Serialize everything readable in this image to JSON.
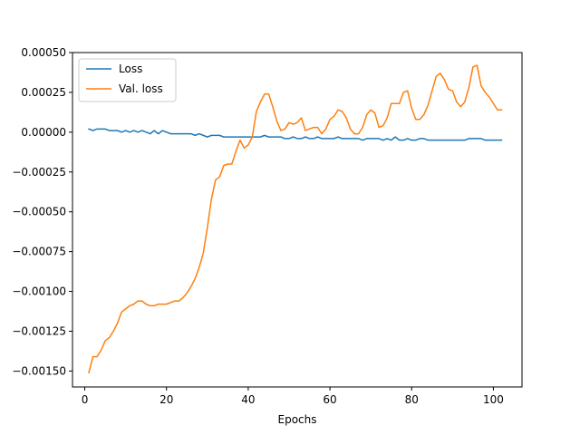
{
  "chart_data": {
    "type": "line",
    "title": "",
    "xlabel": "Epochs",
    "ylabel": "",
    "xlim": [
      -3,
      107
    ],
    "ylim": [
      -0.0016,
      0.0005
    ],
    "xticks": [
      0,
      20,
      40,
      60,
      80,
      100
    ],
    "yticks": [
      0.0005,
      0.00025,
      0.0,
      -0.00025,
      -0.0005,
      -0.00075,
      -0.001,
      -0.00125,
      -0.0015
    ],
    "ytick_labels": [
      "0.00050",
      "0.00025",
      "0.00000",
      "−0.00025",
      "−0.00050",
      "−0.00075",
      "−0.00100",
      "−0.00125",
      "−0.00150"
    ],
    "grid": false,
    "legend_position": "top-left",
    "x": [
      1,
      2,
      3,
      4,
      5,
      6,
      7,
      8,
      9,
      10,
      11,
      12,
      13,
      14,
      15,
      16,
      17,
      18,
      19,
      20,
      21,
      22,
      23,
      24,
      25,
      26,
      27,
      28,
      29,
      30,
      31,
      32,
      33,
      34,
      35,
      36,
      37,
      38,
      39,
      40,
      41,
      42,
      43,
      44,
      45,
      46,
      47,
      48,
      49,
      50,
      51,
      52,
      53,
      54,
      55,
      56,
      57,
      58,
      59,
      60,
      61,
      62,
      63,
      64,
      65,
      66,
      67,
      68,
      69,
      70,
      71,
      72,
      73,
      74,
      75,
      76,
      77,
      78,
      79,
      80,
      81,
      82,
      83,
      84,
      85,
      86,
      87,
      88,
      89,
      90,
      91,
      92,
      93,
      94,
      95,
      96,
      97,
      98,
      99,
      100,
      101,
      102
    ],
    "series": [
      {
        "name": "Loss",
        "color": "#1f77b4",
        "values": [
          2e-05,
          1e-05,
          2e-05,
          2e-05,
          2e-05,
          1e-05,
          1e-05,
          1e-05,
          0.0,
          1e-05,
          0.0,
          1e-05,
          0.0,
          1e-05,
          0.0,
          -1e-05,
          1e-05,
          -1e-05,
          1e-05,
          0.0,
          -1e-05,
          -1e-05,
          -1e-05,
          -1e-05,
          -1e-05,
          -1e-05,
          -2e-05,
          -1e-05,
          -2e-05,
          -3e-05,
          -2e-05,
          -2e-05,
          -2e-05,
          -3e-05,
          -3e-05,
          -3e-05,
          -3e-05,
          -3e-05,
          -3e-05,
          -3e-05,
          -3e-05,
          -3e-05,
          -3e-05,
          -2e-05,
          -3e-05,
          -3e-05,
          -3e-05,
          -3e-05,
          -4e-05,
          -4e-05,
          -3e-05,
          -4e-05,
          -4e-05,
          -3e-05,
          -4e-05,
          -4e-05,
          -3e-05,
          -4e-05,
          -4e-05,
          -4e-05,
          -4e-05,
          -3e-05,
          -4e-05,
          -4e-05,
          -4e-05,
          -4e-05,
          -4e-05,
          -5e-05,
          -4e-05,
          -4e-05,
          -4e-05,
          -4e-05,
          -5e-05,
          -4e-05,
          -5e-05,
          -3e-05,
          -5e-05,
          -5e-05,
          -4e-05,
          -5e-05,
          -5e-05,
          -4e-05,
          -4e-05,
          -5e-05,
          -5e-05,
          -5e-05,
          -5e-05,
          -5e-05,
          -5e-05,
          -5e-05,
          -5e-05,
          -5e-05,
          -5e-05,
          -4e-05,
          -4e-05,
          -4e-05,
          -4e-05,
          -5e-05,
          -5e-05,
          -5e-05,
          -5e-05,
          -5e-05
        ]
      },
      {
        "name": "Val. loss",
        "color": "#ff7f0e",
        "values": [
          -0.00151,
          -0.00141,
          -0.00141,
          -0.00137,
          -0.00131,
          -0.00129,
          -0.00125,
          -0.0012,
          -0.00113,
          -0.00111,
          -0.00109,
          -0.00108,
          -0.00106,
          -0.00106,
          -0.00108,
          -0.00109,
          -0.00109,
          -0.00108,
          -0.00108,
          -0.00108,
          -0.00107,
          -0.00106,
          -0.00106,
          -0.00104,
          -0.00101,
          -0.00097,
          -0.00092,
          -0.00085,
          -0.00076,
          -0.0006,
          -0.00042,
          -0.0003,
          -0.00028,
          -0.00021,
          -0.0002,
          -0.0002,
          -0.00012,
          -5e-05,
          -0.0001,
          -8e-05,
          -3e-05,
          0.00013,
          0.00019,
          0.00024,
          0.00024,
          0.00016,
          7e-05,
          1e-05,
          2e-05,
          6e-05,
          5e-05,
          6e-05,
          9e-05,
          1e-05,
          2e-05,
          3e-05,
          3e-05,
          -1e-05,
          2e-05,
          8e-05,
          0.0001,
          0.00014,
          0.00013,
          9e-05,
          2e-05,
          -1e-05,
          -1e-05,
          3e-05,
          0.00011,
          0.00014,
          0.00012,
          3e-05,
          4e-05,
          9e-05,
          0.00018,
          0.00018,
          0.00018,
          0.00025,
          0.00026,
          0.00015,
          8e-05,
          8e-05,
          0.00011,
          0.00017,
          0.00026,
          0.00035,
          0.00037,
          0.00033,
          0.00027,
          0.00026,
          0.00019,
          0.00016,
          0.00019,
          0.00028,
          0.00041,
          0.00042,
          0.00029,
          0.00025,
          0.00022,
          0.00018,
          0.00014,
          0.00014
        ]
      }
    ]
  }
}
